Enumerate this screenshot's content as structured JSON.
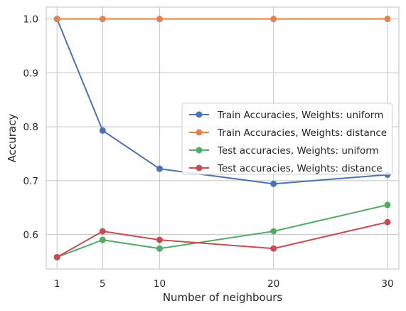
{
  "chart_data": {
    "type": "line",
    "title": "",
    "xlabel": "Number of neighbours",
    "ylabel": "Accuracy",
    "x": [
      1,
      5,
      10,
      20,
      30
    ],
    "xticks": [
      1,
      5,
      10,
      20,
      30
    ],
    "xlim": [
      0.05,
      31
    ],
    "yticks": [
      0.6,
      0.7,
      0.8,
      0.9,
      1.0
    ],
    "ytick_labels": [
      "0.6",
      "0.7",
      "0.8",
      "0.9",
      "1.0"
    ],
    "ylim": [
      0.536,
      1.022
    ],
    "grid": true,
    "legend_position": "center-right",
    "series": [
      {
        "name": "Train Accuracies, Weights: uniform",
        "color": "#4c72b0",
        "values": [
          1.0,
          0.793,
          0.722,
          0.694,
          0.711
        ]
      },
      {
        "name": "Train Accuracies, Weights: distance",
        "color": "#dd8452",
        "values": [
          1.0,
          1.0,
          1.0,
          1.0,
          1.0
        ]
      },
      {
        "name": "Test accuracies, Weights: uniform",
        "color": "#55a868",
        "values": [
          0.558,
          0.59,
          0.574,
          0.606,
          0.655
        ]
      },
      {
        "name": "Test accuracies, Weights: distance",
        "color": "#c44e52",
        "values": [
          0.558,
          0.606,
          0.59,
          0.574,
          0.623
        ]
      }
    ]
  }
}
